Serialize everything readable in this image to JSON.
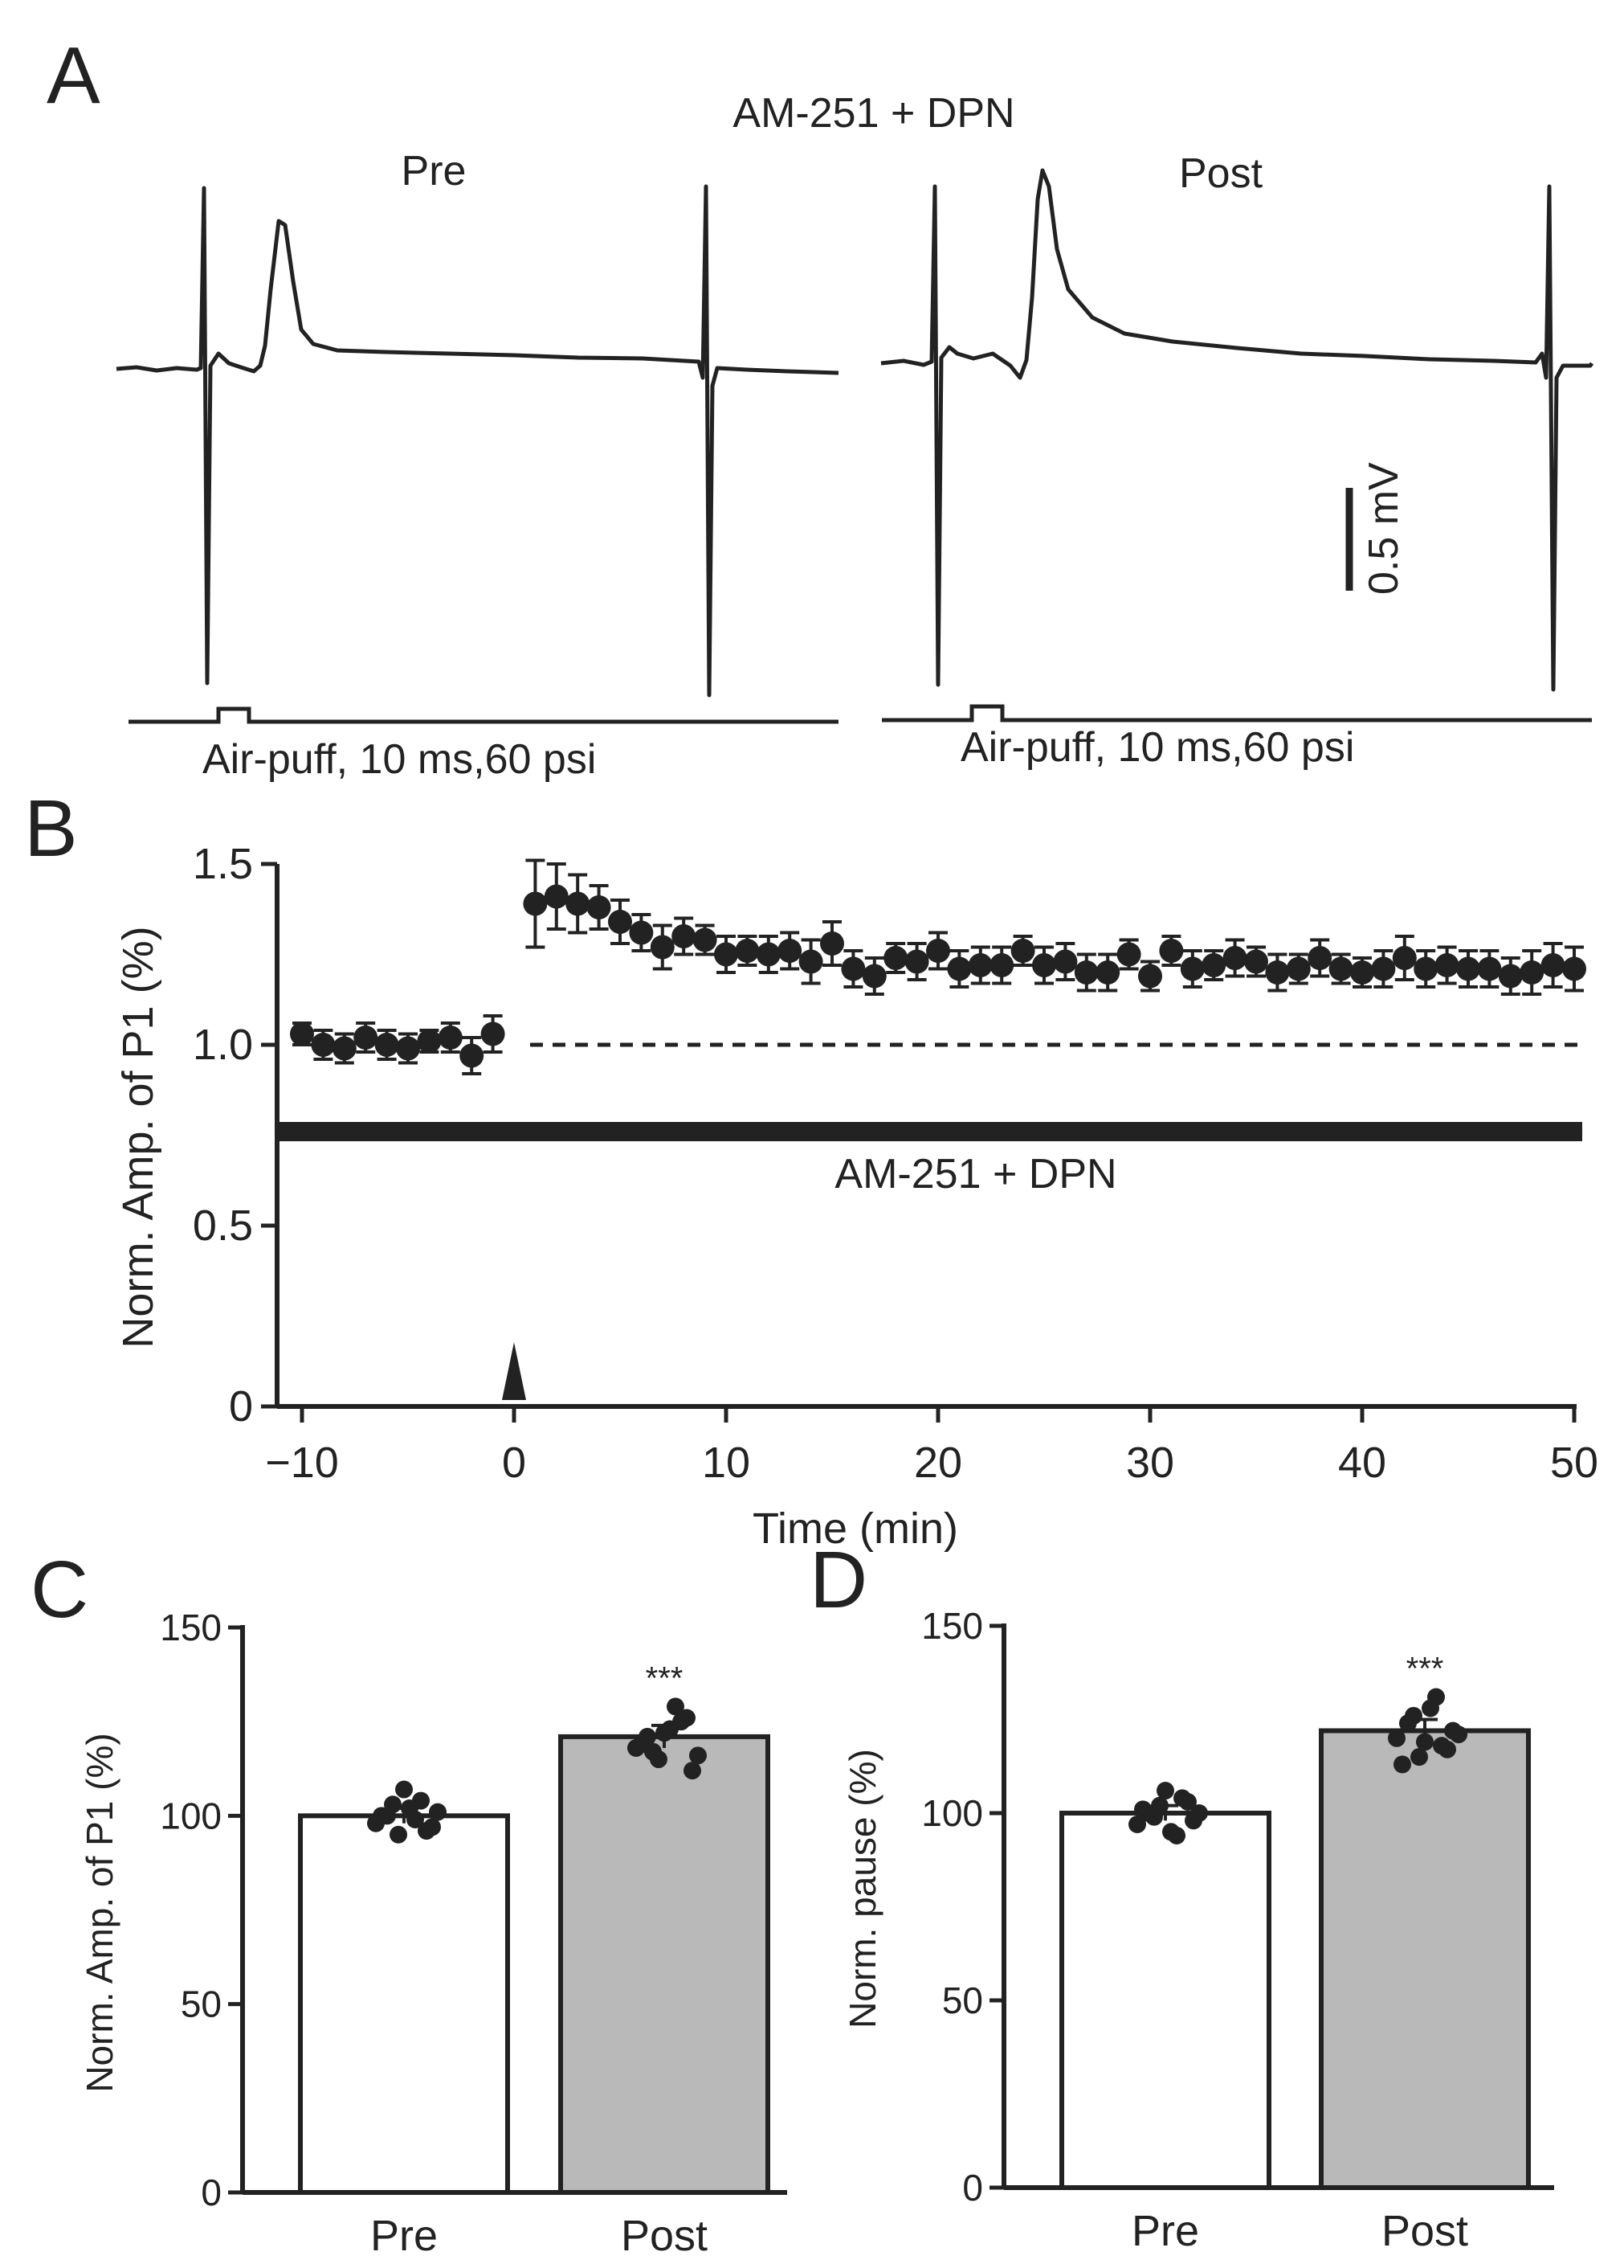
{
  "panel_labels": {
    "a": "A",
    "b": "B",
    "c": "C",
    "d": "D"
  },
  "colors": {
    "ink": "#222222",
    "bar_pre": "#ffffff",
    "bar_post": "#b8b9b8"
  },
  "panel_a": {
    "title": "AM-251 + DPN",
    "pre_label": "Pre",
    "post_label": "Post",
    "stimulus_label": "Air-puff, 10 ms,60 psi",
    "scale_label": "0.5 mV",
    "scale_value_mv": 0.5
  },
  "chart_data": [
    {
      "panel": "B",
      "type": "scatter",
      "xlabel": "Time (min)",
      "ylabel": "Norm. Amp. of P1 (%)",
      "xlim": [
        -11,
        51
      ],
      "ylim": [
        0,
        1.5
      ],
      "xticks": [
        -10,
        0,
        10,
        20,
        30,
        40,
        50
      ],
      "xtick_labels": [
        "−10",
        "0",
        "10",
        "20",
        "30",
        "40",
        "50"
      ],
      "yticks": [
        0,
        0.5,
        1.0,
        1.5
      ],
      "ytick_labels": [
        "0",
        "0.5",
        "1.0",
        "1.5"
      ],
      "baseline": 1.0,
      "drug_bar_label": "AM-251 + DPN",
      "drug_bar_value": 0.76,
      "stimulus_marker_x": 0,
      "series": [
        {
          "name": "Norm. Amp. of P1",
          "x": [
            -10,
            -9,
            -8,
            -7,
            -6,
            -5,
            -4,
            -3,
            -2,
            -1,
            1,
            2,
            3,
            4,
            5,
            6,
            7,
            8,
            9,
            10,
            11,
            12,
            13,
            14,
            15,
            16,
            17,
            18,
            19,
            20,
            21,
            22,
            23,
            24,
            25,
            26,
            27,
            28,
            29,
            30,
            31,
            32,
            33,
            34,
            35,
            36,
            37,
            38,
            39,
            40,
            41,
            42,
            43,
            44,
            45,
            46,
            47,
            48,
            49,
            50
          ],
          "y": [
            1.03,
            1.0,
            0.99,
            1.02,
            1.0,
            0.99,
            1.01,
            1.02,
            0.97,
            1.03,
            1.39,
            1.41,
            1.39,
            1.38,
            1.34,
            1.31,
            1.27,
            1.3,
            1.29,
            1.25,
            1.26,
            1.25,
            1.26,
            1.23,
            1.28,
            1.21,
            1.19,
            1.24,
            1.23,
            1.26,
            1.21,
            1.22,
            1.22,
            1.26,
            1.22,
            1.23,
            1.2,
            1.2,
            1.25,
            1.19,
            1.26,
            1.21,
            1.22,
            1.24,
            1.23,
            1.2,
            1.21,
            1.24,
            1.21,
            1.2,
            1.21,
            1.24,
            1.21,
            1.22,
            1.21,
            1.21,
            1.19,
            1.2,
            1.22,
            1.21
          ],
          "err": [
            0.03,
            0.04,
            0.04,
            0.04,
            0.04,
            0.04,
            0.03,
            0.04,
            0.05,
            0.05,
            0.12,
            0.09,
            0.08,
            0.06,
            0.06,
            0.05,
            0.06,
            0.05,
            0.04,
            0.05,
            0.04,
            0.05,
            0.05,
            0.06,
            0.06,
            0.05,
            0.05,
            0.04,
            0.05,
            0.05,
            0.05,
            0.05,
            0.05,
            0.04,
            0.05,
            0.05,
            0.05,
            0.05,
            0.04,
            0.04,
            0.04,
            0.05,
            0.04,
            0.05,
            0.04,
            0.05,
            0.04,
            0.05,
            0.04,
            0.04,
            0.05,
            0.06,
            0.05,
            0.05,
            0.05,
            0.05,
            0.05,
            0.06,
            0.06,
            0.06
          ]
        }
      ]
    },
    {
      "panel": "C",
      "type": "bar",
      "categories": [
        "Pre",
        "Post"
      ],
      "values": [
        100,
        121
      ],
      "errors": [
        2,
        3
      ],
      "ylabel": "Norm. Amp. of P1 (%)",
      "ylim": [
        0,
        150
      ],
      "yticks": [
        0,
        50,
        100,
        150
      ],
      "ytick_labels": [
        "0",
        "50",
        "100",
        "150"
      ],
      "significance": "***",
      "points": [
        [
          98,
          100,
          95,
          102,
          104,
          97,
          100,
          103,
          107,
          99,
          96,
          101
        ],
        [
          118,
          121,
          115,
          123,
          125,
          112,
          119,
          117,
          122,
          129,
          126,
          116
        ]
      ]
    },
    {
      "panel": "D",
      "type": "bar",
      "categories": [
        "Pre",
        "Post"
      ],
      "values": [
        100,
        122
      ],
      "errors": [
        2,
        3
      ],
      "ylabel": "Norm. pause (%)",
      "ylim": [
        0,
        150
      ],
      "yticks": [
        0,
        50,
        100,
        150
      ],
      "ytick_labels": [
        "0",
        "50",
        "100",
        "150"
      ],
      "significance": "***",
      "points": [
        [
          97,
          100,
          102,
          95,
          104,
          98,
          101,
          99,
          106,
          94,
          103,
          100
        ],
        [
          120,
          124,
          115,
          128,
          118,
          122,
          113,
          126,
          119,
          131,
          117,
          121
        ]
      ]
    }
  ]
}
